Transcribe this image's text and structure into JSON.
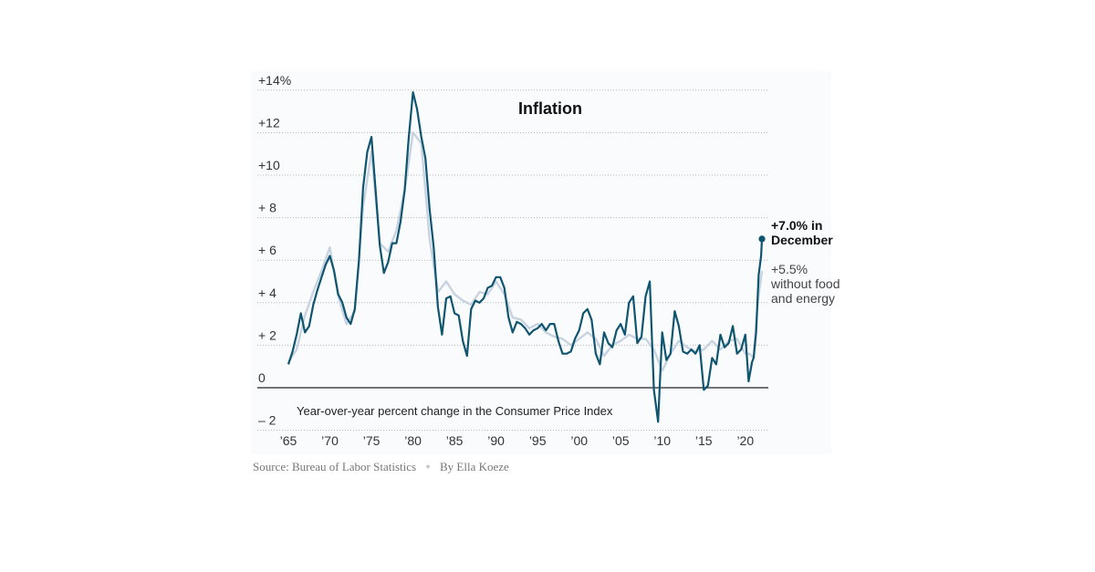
{
  "chart_data": {
    "type": "line",
    "title": "Inflation",
    "subtitle": "Year-over-year percent change in the Consumer Price Index",
    "y_ticks": [
      {
        "value": 14,
        "label": "+14%"
      },
      {
        "value": 12,
        "label": "+12"
      },
      {
        "value": 10,
        "label": "+10"
      },
      {
        "value": 8,
        "label": "+ 8"
      },
      {
        "value": 6,
        "label": "+ 6"
      },
      {
        "value": 4,
        "label": "+ 4"
      },
      {
        "value": 2,
        "label": "+ 2"
      },
      {
        "value": 0,
        "label": "0"
      },
      {
        "value": -2,
        "label": "– 2"
      }
    ],
    "x_ticks": [
      {
        "value": 1965,
        "label": "’65"
      },
      {
        "value": 1970,
        "label": "’70"
      },
      {
        "value": 1975,
        "label": "’75"
      },
      {
        "value": 1980,
        "label": "’80"
      },
      {
        "value": 1985,
        "label": "’85"
      },
      {
        "value": 1990,
        "label": "’90"
      },
      {
        "value": 1995,
        "label": "’95"
      },
      {
        "value": 2000,
        "label": "’00"
      },
      {
        "value": 2005,
        "label": "’05"
      },
      {
        "value": 2010,
        "label": "’10"
      },
      {
        "value": 2015,
        "label": "’15"
      },
      {
        "value": 2020,
        "label": "’20"
      }
    ],
    "xlim": [
      1965,
      2022.3
    ],
    "ylim": [
      -2,
      14.6
    ],
    "grid": true,
    "series": [
      {
        "name": "Consumer Price Index",
        "color": "#0f5570",
        "x": [
          1965.0,
          1965.5,
          1966.0,
          1966.5,
          1967.0,
          1967.5,
          1968.0,
          1968.5,
          1969.0,
          1969.5,
          1970.0,
          1970.5,
          1971.0,
          1971.5,
          1972.0,
          1972.5,
          1973.0,
          1973.5,
          1974.0,
          1974.5,
          1975.0,
          1975.5,
          1976.0,
          1976.5,
          1977.0,
          1977.5,
          1978.0,
          1978.5,
          1979.0,
          1979.5,
          1980.0,
          1980.5,
          1981.0,
          1981.5,
          1982.0,
          1982.5,
          1983.0,
          1983.5,
          1984.0,
          1984.5,
          1985.0,
          1985.5,
          1986.0,
          1986.5,
          1987.0,
          1987.5,
          1988.0,
          1988.5,
          1989.0,
          1989.5,
          1990.0,
          1990.5,
          1991.0,
          1991.5,
          1992.0,
          1992.5,
          1993.0,
          1993.5,
          1994.0,
          1994.5,
          1995.0,
          1995.5,
          1996.0,
          1996.5,
          1997.0,
          1997.5,
          1998.0,
          1998.5,
          1999.0,
          1999.5,
          2000.0,
          2000.5,
          2001.0,
          2001.5,
          2002.0,
          2002.5,
          2003.0,
          2003.5,
          2004.0,
          2004.5,
          2005.0,
          2005.5,
          2006.0,
          2006.5,
          2007.0,
          2007.5,
          2008.0,
          2008.5,
          2009.0,
          2009.5,
          2010.0,
          2010.5,
          2011.0,
          2011.5,
          2012.0,
          2012.5,
          2013.0,
          2013.5,
          2014.0,
          2014.5,
          2015.0,
          2015.5,
          2016.0,
          2016.5,
          2017.0,
          2017.5,
          2018.0,
          2018.5,
          2019.0,
          2019.5,
          2020.0,
          2020.4,
          2020.8,
          2021.0,
          2021.3,
          2021.6,
          2021.9,
          2022.0
        ],
        "values": [
          1.1,
          1.7,
          2.5,
          3.5,
          2.6,
          2.9,
          3.9,
          4.6,
          5.2,
          5.8,
          6.2,
          5.5,
          4.4,
          4.0,
          3.3,
          3.0,
          3.7,
          6.0,
          9.4,
          11.1,
          11.8,
          9.3,
          6.7,
          5.4,
          5.9,
          6.8,
          6.8,
          7.8,
          9.3,
          11.8,
          13.9,
          13.1,
          11.8,
          10.8,
          8.4,
          6.6,
          3.8,
          2.5,
          4.2,
          4.3,
          3.5,
          3.4,
          2.2,
          1.5,
          3.7,
          4.1,
          4.0,
          4.2,
          4.7,
          4.8,
          5.2,
          5.2,
          4.7,
          3.3,
          2.6,
          3.1,
          3.0,
          2.8,
          2.5,
          2.7,
          2.8,
          3.0,
          2.7,
          3.0,
          3.0,
          2.2,
          1.6,
          1.6,
          1.7,
          2.3,
          2.7,
          3.5,
          3.7,
          3.2,
          1.6,
          1.1,
          2.6,
          2.1,
          1.9,
          2.7,
          3.0,
          2.5,
          4.0,
          4.3,
          2.1,
          2.4,
          4.3,
          5.0,
          -0.1,
          -1.6,
          2.6,
          1.3,
          1.6,
          3.6,
          2.9,
          1.7,
          1.6,
          1.8,
          1.6,
          2.0,
          -0.1,
          0.1,
          1.4,
          1.1,
          2.5,
          1.9,
          2.1,
          2.9,
          1.6,
          1.8,
          2.5,
          0.3,
          1.2,
          1.4,
          2.6,
          5.3,
          6.2,
          7.0
        ]
      },
      {
        "name": "without food and energy",
        "color": "#c7d3e0",
        "x": [
          1965.0,
          1966.0,
          1967.0,
          1968.0,
          1969.0,
          1970.0,
          1971.0,
          1972.0,
          1973.0,
          1974.0,
          1975.0,
          1976.0,
          1977.0,
          1978.0,
          1979.0,
          1980.0,
          1981.0,
          1982.0,
          1983.0,
          1984.0,
          1985.0,
          1986.0,
          1987.0,
          1988.0,
          1989.0,
          1990.0,
          1991.0,
          1992.0,
          1993.0,
          1994.0,
          1995.0,
          1996.0,
          1997.0,
          1998.0,
          1999.0,
          2000.0,
          2001.0,
          2002.0,
          2003.0,
          2004.0,
          2005.0,
          2006.0,
          2007.0,
          2008.0,
          2009.0,
          2010.0,
          2011.0,
          2012.0,
          2013.0,
          2014.0,
          2015.0,
          2016.0,
          2017.0,
          2018.0,
          2019.0,
          2020.0,
          2020.5,
          2021.0,
          2021.5,
          2022.0
        ],
        "values": [
          1.2,
          1.8,
          3.4,
          4.5,
          5.5,
          6.6,
          4.3,
          3.0,
          3.6,
          8.5,
          11.1,
          6.8,
          6.4,
          7.4,
          9.3,
          12.0,
          11.5,
          7.0,
          4.5,
          5.0,
          4.4,
          4.1,
          3.9,
          4.5,
          4.4,
          5.0,
          4.4,
          3.3,
          3.2,
          2.8,
          3.0,
          2.6,
          2.4,
          2.3,
          2.0,
          2.3,
          2.6,
          2.3,
          1.5,
          2.0,
          2.2,
          2.5,
          2.3,
          2.3,
          1.8,
          0.8,
          1.6,
          2.2,
          1.9,
          1.7,
          1.8,
          2.2,
          1.8,
          2.2,
          2.3,
          1.6,
          1.6,
          1.4,
          4.0,
          5.5
        ]
      }
    ],
    "annotations": {
      "latest_line1": "+7.0% in",
      "latest_line2": "December",
      "core_line1": "+5.5%",
      "core_line2": "without food",
      "core_line3": "and energy"
    }
  },
  "source_label": "Source:",
  "source_text": "Bureau of Labor Statistics",
  "byline": "By Ella Koeze"
}
